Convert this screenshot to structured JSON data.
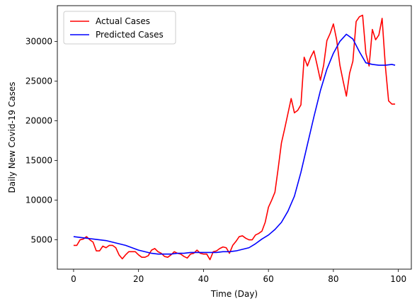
{
  "chart_data": {
    "type": "line",
    "xlabel": "Time (Day)",
    "ylabel": "Daily New Covid-19 Cases",
    "xlim": [
      -5,
      104
    ],
    "ylim": [
      1300,
      34500
    ],
    "xticks": [
      0,
      20,
      40,
      60,
      80,
      100
    ],
    "yticks": [
      5000,
      10000,
      15000,
      20000,
      25000,
      30000
    ],
    "grid": false,
    "legend_position": "upper-left",
    "series": [
      {
        "name": "Actual Cases",
        "color": "#ff0000",
        "x": [
          0,
          1,
          2,
          3,
          4,
          5,
          6,
          7,
          8,
          9,
          10,
          11,
          12,
          13,
          14,
          15,
          16,
          17,
          18,
          19,
          20,
          21,
          22,
          23,
          24,
          25,
          26,
          27,
          28,
          29,
          30,
          31,
          32,
          33,
          34,
          35,
          36,
          37,
          38,
          39,
          40,
          41,
          42,
          43,
          44,
          45,
          46,
          47,
          48,
          49,
          50,
          51,
          52,
          53,
          54,
          55,
          56,
          57,
          58,
          59,
          60,
          61,
          62,
          63,
          64,
          65,
          66,
          67,
          68,
          69,
          70,
          71,
          72,
          73,
          74,
          75,
          76,
          77,
          78,
          79,
          80,
          81,
          82,
          83,
          84,
          85,
          86,
          87,
          88,
          89,
          90,
          91,
          92,
          93,
          94,
          95,
          96,
          97,
          98,
          99
        ],
        "y": [
          4300,
          4300,
          5000,
          5100,
          5400,
          5000,
          4700,
          3600,
          3600,
          4200,
          4000,
          4300,
          4300,
          4000,
          3100,
          2600,
          3100,
          3500,
          3500,
          3500,
          3100,
          2800,
          2800,
          3000,
          3700,
          3900,
          3500,
          3300,
          2900,
          2800,
          3100,
          3500,
          3300,
          3200,
          2900,
          2700,
          3200,
          3300,
          3700,
          3300,
          3200,
          3200,
          2500,
          3500,
          3600,
          3900,
          4100,
          4000,
          3300,
          4300,
          4800,
          5400,
          5500,
          5200,
          5000,
          5000,
          5600,
          5800,
          6100,
          7200,
          9100,
          10000,
          11000,
          14000,
          17200,
          19000,
          20900,
          22800,
          21000,
          21300,
          22000,
          28000,
          26900,
          28000,
          28800,
          27000,
          25100,
          27000,
          30100,
          31000,
          32200,
          30200,
          27000,
          25000,
          23100,
          26000,
          27500,
          32500,
          33100,
          33300,
          28500,
          26900,
          31500,
          30200,
          30800,
          32900,
          26900,
          22500,
          22100,
          22100
        ],
        "y_note": ""
      },
      {
        "name": "Predicted Cases",
        "color": "#0000ff",
        "x": [
          0,
          2,
          4,
          6,
          8,
          10,
          12,
          14,
          16,
          18,
          20,
          22,
          24,
          26,
          28,
          30,
          32,
          34,
          36,
          38,
          40,
          42,
          44,
          46,
          48,
          50,
          52,
          54,
          56,
          58,
          60,
          62,
          64,
          66,
          68,
          70,
          72,
          74,
          76,
          78,
          80,
          82,
          84,
          86,
          88,
          90,
          92,
          94,
          96,
          98,
          99
        ],
        "y": [
          5400,
          5300,
          5200,
          5100,
          5000,
          4900,
          4700,
          4500,
          4300,
          4000,
          3700,
          3500,
          3300,
          3200,
          3200,
          3200,
          3300,
          3300,
          3400,
          3400,
          3400,
          3400,
          3400,
          3500,
          3500,
          3600,
          3800,
          4000,
          4500,
          5100,
          5600,
          6300,
          7200,
          8600,
          10500,
          13500,
          17000,
          20500,
          23800,
          26500,
          28500,
          30000,
          30900,
          30300,
          28700,
          27300,
          27100,
          27000,
          27000,
          27100,
          27000
        ]
      }
    ]
  }
}
